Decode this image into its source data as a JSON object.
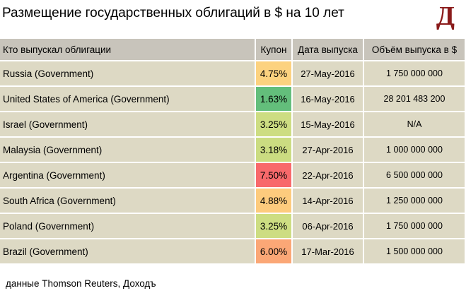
{
  "title": "Размещение государственных облигаций в $ на 10 лет",
  "logo_text": "Д",
  "colors": {
    "header_bg": "#c8c4bb",
    "row_bg": "#ddd9c4",
    "logo": "#8b1c1c"
  },
  "chart_data": {
    "type": "table",
    "columns": [
      "Кто выпускал облигации",
      "Купон",
      "Дата выпуска",
      "Объём выпуска в $"
    ],
    "rows": [
      {
        "issuer": "Russia (Government)",
        "coupon": "4.75%",
        "coupon_value": 4.75,
        "coupon_color": "#fcd27f",
        "date": "27-May-2016",
        "volume": "1 750 000 000"
      },
      {
        "issuer": "United States of America (Government)",
        "coupon": "1.63%",
        "coupon_value": 1.63,
        "coupon_color": "#63be7b",
        "date": "16-May-2016",
        "volume": "28 201 483 200"
      },
      {
        "issuer": "Israel (Government)",
        "coupon": "3.25%",
        "coupon_value": 3.25,
        "coupon_color": "#cddd82",
        "date": "15-May-2016",
        "volume": "N/A"
      },
      {
        "issuer": "Malaysia (Government)",
        "coupon": "3.18%",
        "coupon_value": 3.18,
        "coupon_color": "#cbdc81",
        "date": "27-Apr-2016",
        "volume": "1 000 000 000"
      },
      {
        "issuer": "Argentina (Government)",
        "coupon": "7.50%",
        "coupon_value": 7.5,
        "coupon_color": "#f8696b",
        "date": "22-Apr-2016",
        "volume": "6 500 000 000"
      },
      {
        "issuer": "South Africa (Government)",
        "coupon": "4.88%",
        "coupon_value": 4.88,
        "coupon_color": "#fdcb7d",
        "date": "14-Apr-2016",
        "volume": "1 250 000 000"
      },
      {
        "issuer": "Poland (Government)",
        "coupon": "3.25%",
        "coupon_value": 3.25,
        "coupon_color": "#cddd82",
        "date": "06-Apr-2016",
        "volume": "1 750 000 000"
      },
      {
        "issuer": "Brazil (Government)",
        "coupon": "6.00%",
        "coupon_value": 6.0,
        "coupon_color": "#fba776",
        "date": "17-Mar-2016",
        "volume": "1 500 000 000"
      }
    ]
  },
  "source": "данные Thomson Reuters, Доходъ"
}
